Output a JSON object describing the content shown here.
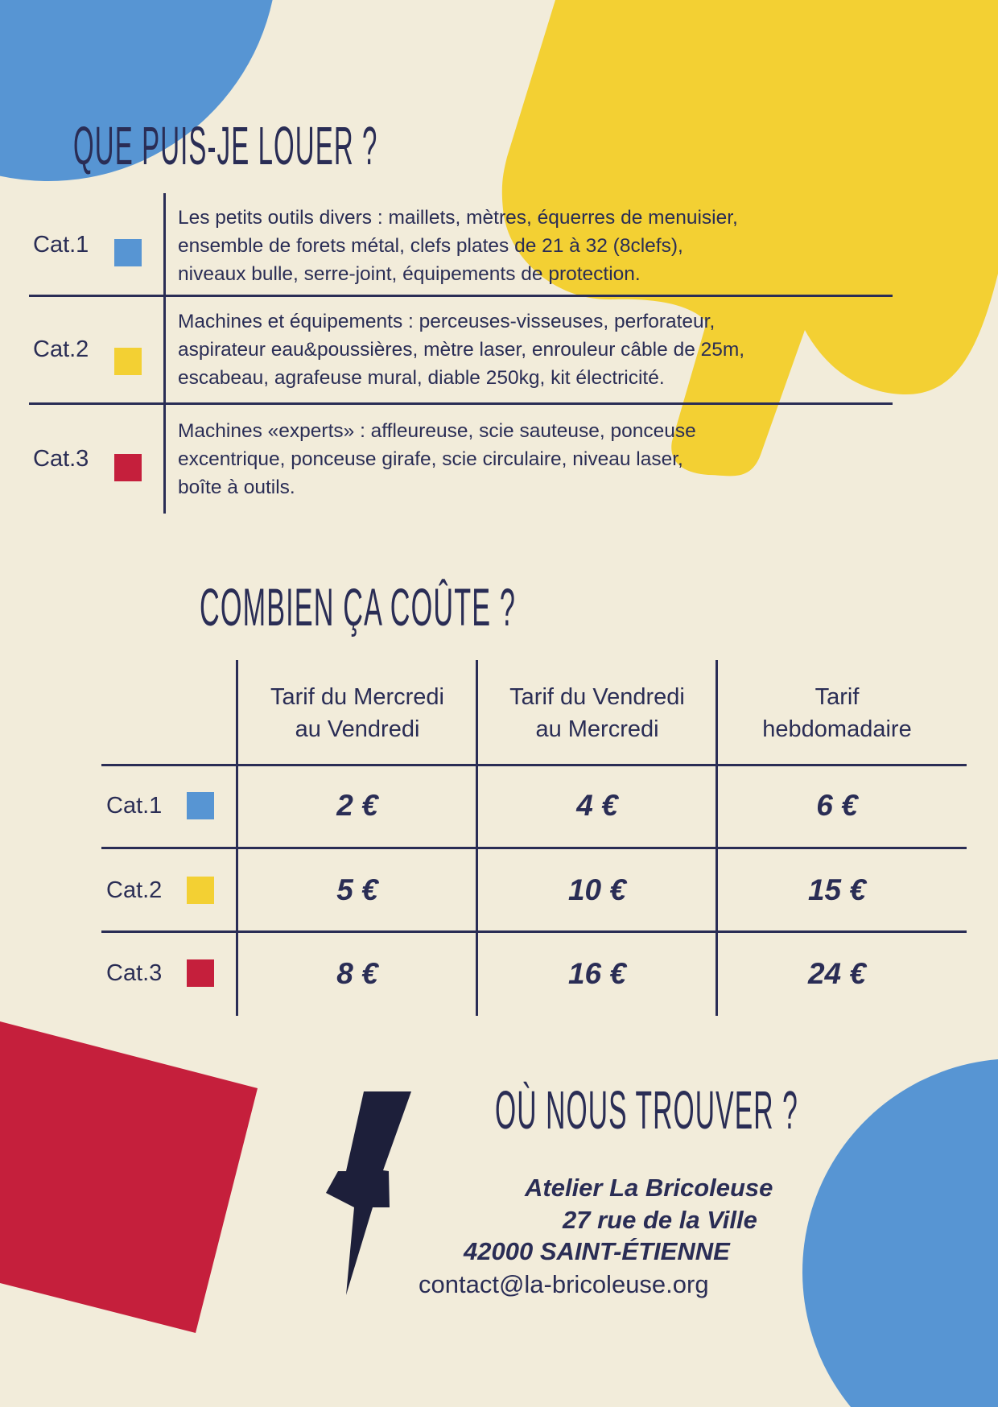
{
  "colors": {
    "background": "#f2ecda",
    "text": "#2a2d55",
    "blue": "#5795d3",
    "yellow": "#f3d033",
    "red": "#c51f3c"
  },
  "section_rent": {
    "title": "QUE PUIS-JE LOUER ?",
    "categories": [
      {
        "label": "Cat.1",
        "color": "#5795d3",
        "lines": [
          "Les petits outils divers : maillets, mètres, équerres de menuisier,",
          "ensemble de forets métal, clefs plates de 21 à 32 (8clefs),",
          "niveaux  bulle, serre-joint, équipements de protection."
        ]
      },
      {
        "label": "Cat.2",
        "color": "#f3d033",
        "lines": [
          "Machines et équipements : perceuses-visseuses, perforateur,",
          "aspirateur eau&poussières, mètre laser, enrouleur câble de 25m,",
          "escabeau, agrafeuse mural, diable 250kg, kit électricité."
        ]
      },
      {
        "label": "Cat.3",
        "color": "#c51f3c",
        "lines": [
          "Machines «experts» : affleureuse, scie sauteuse, ponceuse",
          "excentrique, ponceuse girafe, scie circulaire, niveau laser,",
          "boîte à outils."
        ]
      }
    ]
  },
  "section_price": {
    "title": "COMBIEN ÇA COÛTE ?",
    "headers": [
      [
        "Tarif du Mercredi",
        "au Vendredi"
      ],
      [
        "Tarif du Vendredi",
        "au Mercredi"
      ],
      [
        "Tarif",
        "hebdomadaire"
      ]
    ],
    "rows": [
      {
        "label": "Cat.1",
        "color": "#5795d3",
        "prices": [
          "2 €",
          "4 €",
          "6 €"
        ]
      },
      {
        "label": "Cat.2",
        "color": "#f3d033",
        "prices": [
          "5 €",
          "10 €",
          "15 €"
        ]
      },
      {
        "label": "Cat.3",
        "color": "#c51f3c",
        "prices": [
          "8 €",
          "16 €",
          "24 €"
        ]
      }
    ]
  },
  "section_location": {
    "title": "OÙ NOUS TROUVER ?",
    "icon": "lightning-bolt-icon",
    "name": "Atelier La Bricoleuse",
    "street": "27 rue de la Ville",
    "city": "42000 SAINT-ÉTIENNE",
    "email": "contact@la-bricoleuse.org"
  }
}
